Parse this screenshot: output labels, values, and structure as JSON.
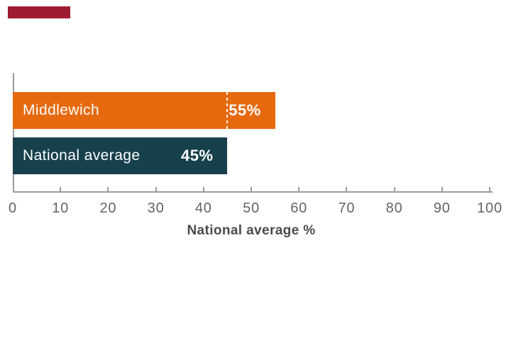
{
  "figure": {
    "background": "#ffffff",
    "brand_bar_color": "#9e1b32"
  },
  "chart_data": {
    "type": "bar",
    "orientation": "horizontal",
    "title": "",
    "xlabel": "National average %",
    "xlim": [
      0,
      100
    ],
    "x_ticks": [
      0,
      10,
      20,
      30,
      40,
      50,
      60,
      70,
      80,
      90,
      100
    ],
    "grid": false,
    "legend": "none",
    "categories": [
      "Middlewich",
      "National average"
    ],
    "series": [
      {
        "name": "Middlewich",
        "value": 55,
        "label": "55%",
        "color": "#e7690e"
      },
      {
        "name": "National average",
        "value": 45,
        "label": "45%",
        "color": "#16404b"
      }
    ],
    "reference_line": {
      "value": 45,
      "style": "dashed",
      "color": "#ffffff",
      "applies_to": "Middlewich"
    },
    "bar_text_color": "#ffffff",
    "axis_color": "#9b9b9b",
    "tick_label_color": "#636466",
    "xlabel_color": "#4a4a4c"
  }
}
